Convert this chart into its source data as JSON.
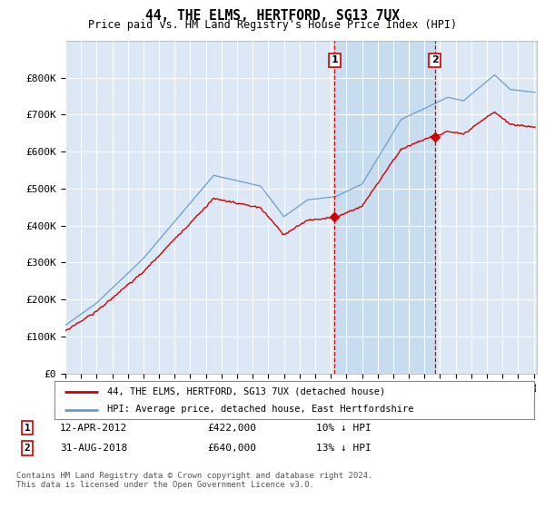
{
  "title": "44, THE ELMS, HERTFORD, SG13 7UX",
  "subtitle": "Price paid vs. HM Land Registry's House Price Index (HPI)",
  "ylim": [
    0,
    900000
  ],
  "yticks": [
    0,
    100000,
    200000,
    300000,
    400000,
    500000,
    600000,
    700000,
    800000
  ],
  "ytick_labels": [
    "£0",
    "£100K",
    "£200K",
    "£300K",
    "£400K",
    "£500K",
    "£600K",
    "£700K",
    "£800K"
  ],
  "background_color": "#ffffff",
  "plot_bg_color": "#dce8f5",
  "shaded_region_color": "#c8dcf0",
  "grid_color": "#ffffff",
  "hpi_color": "#6699cc",
  "price_color": "#cc0000",
  "marker1_label": "1",
  "marker2_label": "2",
  "marker1_price": 422000,
  "marker2_price": 640000,
  "legend_label1": "44, THE ELMS, HERTFORD, SG13 7UX (detached house)",
  "legend_label2": "HPI: Average price, detached house, East Hertfordshire",
  "copyright_text": "Contains HM Land Registry data © Crown copyright and database right 2024.\nThis data is licensed under the Open Government Licence v3.0.",
  "start_year": 1995,
  "end_year": 2025,
  "sale1_year": 2012.29,
  "sale2_year": 2018.67
}
